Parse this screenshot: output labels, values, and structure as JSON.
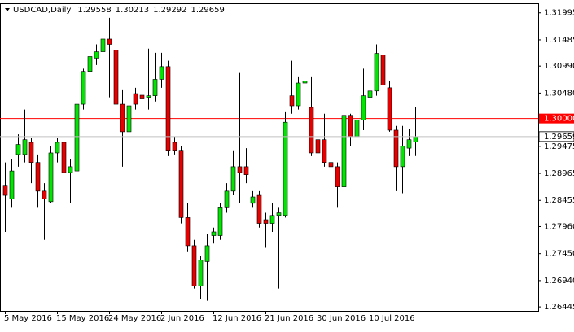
{
  "chart_data": {
    "type": "candlestick",
    "title": "USDCAD,Daily",
    "up_color": "#00e600",
    "down_color": "#e60000",
    "categories": [
      "5 May 2016",
      null,
      null,
      null,
      null,
      null,
      null,
      null,
      "15 May 2016",
      null,
      null,
      null,
      null,
      null,
      null,
      null,
      "24 May 2016",
      null,
      null,
      null,
      null,
      null,
      null,
      null,
      "2 Jun 2016",
      null,
      null,
      null,
      null,
      null,
      null,
      null,
      "12 Jun 2016",
      null,
      null,
      null,
      null,
      null,
      null,
      null,
      "21 Jun 2016",
      null,
      null,
      null,
      null,
      null,
      null,
      null,
      "30 Jun 2016",
      null,
      null,
      null,
      null,
      null,
      null,
      null,
      "10 Jul 2016",
      null,
      null,
      null,
      null,
      null,
      null,
      null
    ],
    "open": [
      1.2874,
      1.2848,
      1.2932,
      1.2932,
      1.2955,
      1.2917,
      1.2863,
      1.2843,
      1.2935,
      1.2955,
      1.2898,
      1.2901,
      1.3027,
      1.3089,
      1.3114,
      1.3126,
      1.315,
      1.3129,
      1.3027,
      1.2975,
      1.3047,
      1.3044,
      1.304,
      1.3043,
      1.3074,
      1.3098,
      1.2955,
      1.294,
      1.2813,
      1.276,
      1.2684,
      1.273,
      1.2779,
      1.2779,
      1.2833,
      1.2863,
      1.2909,
      1.2909,
      1.284,
      1.2855,
      1.2809,
      1.2802,
      1.2817,
      1.2817,
      1.3043,
      1.3024,
      1.3067,
      1.3021,
      1.296,
      1.296,
      1.2917,
      1.2909,
      1.2871,
      1.3006,
      1.2966,
      1.2997,
      1.304,
      1.3052,
      1.312,
      1.3058,
      1.2978,
      1.2909,
      1.2944,
      1.29558
    ],
    "high": [
      1.2917,
      1.2924,
      1.297,
      1.3017,
      1.2963,
      1.2932,
      1.2878,
      1.2948,
      1.2963,
      1.2963,
      1.2924,
      1.3032,
      1.3094,
      1.316,
      1.314,
      1.3166,
      1.319,
      1.3135,
      1.3055,
      1.304,
      1.3058,
      1.3058,
      1.3132,
      1.3124,
      1.3124,
      1.3109,
      1.2966,
      1.2948,
      1.284,
      1.2771,
      1.274,
      1.2782,
      1.2794,
      1.284,
      1.2878,
      1.294,
      1.3086,
      1.2944,
      1.2863,
      1.2863,
      1.2822,
      1.284,
      1.2833,
      1.3012,
      1.3109,
      1.3078,
      1.3114,
      1.3078,
      1.3009,
      1.3009,
      1.2924,
      1.2917,
      1.3027,
      1.3009,
      1.3032,
      1.3094,
      1.3058,
      1.314,
      1.3132,
      1.3071,
      1.2986,
      1.2986,
      1.2981,
      1.30213
    ],
    "low": [
      1.2786,
      1.2833,
      1.2909,
      1.2917,
      1.2878,
      1.2833,
      1.2771,
      1.284,
      1.2917,
      1.2894,
      1.284,
      1.2894,
      1.3017,
      1.3083,
      1.3101,
      1.312,
      1.304,
      1.2955,
      1.2909,
      1.2963,
      1.3017,
      1.3017,
      1.3017,
      1.3032,
      1.3058,
      1.2929,
      1.2932,
      1.2802,
      1.2748,
      1.2679,
      1.2659,
      1.2656,
      1.2764,
      1.2771,
      1.2822,
      1.2855,
      1.284,
      1.2878,
      1.2833,
      1.2794,
      1.2756,
      1.2786,
      1.2679,
      1.2813,
      1.3009,
      1.3017,
      1.3024,
      1.2929,
      1.292,
      1.2909,
      1.2863,
      1.2833,
      1.2868,
      1.2948,
      1.2955,
      1.2978,
      1.3032,
      1.3043,
      1.2978,
      1.2975,
      1.2863,
      1.2859,
      1.2929,
      1.29292
    ],
    "close": [
      1.2855,
      1.2901,
      1.2951,
      1.296,
      1.2917,
      1.2863,
      1.2848,
      1.2935,
      1.2955,
      1.2898,
      1.2909,
      1.3027,
      1.3089,
      1.3117,
      1.3126,
      1.315,
      1.314,
      1.3027,
      1.2975,
      1.3024,
      1.3027,
      1.3037,
      1.3043,
      1.3074,
      1.3098,
      1.294,
      1.294,
      1.2813,
      1.276,
      1.2684,
      1.2733,
      1.276,
      1.2786,
      1.2833,
      1.2863,
      1.2909,
      1.2898,
      1.2894,
      1.2852,
      1.2802,
      1.2802,
      1.2817,
      1.2822,
      1.2993,
      1.3024,
      1.3067,
      1.3071,
      1.2935,
      1.2935,
      1.2917,
      1.2909,
      1.2871,
      1.3006,
      1.2966,
      1.2997,
      1.3043,
      1.3052,
      1.3123,
      1.3063,
      1.2978,
      1.2909,
      1.2948,
      1.296,
      1.29659
    ],
    "ylim": [
      1.2637,
      1.3216
    ],
    "yticks": [
      1.31995,
      1.31485,
      {
        "value": 1.3099,
        "label": "1.30990"
      },
      {
        "value": 1.3048,
        "label": "1.30480"
      },
      1.29475,
      1.28965,
      1.28455,
      {
        "value": 1.2796,
        "label": "1.27960"
      },
      {
        "value": 1.2745,
        "label": "1.27450"
      },
      {
        "value": 1.2694,
        "label": "1.26940"
      },
      1.26445
    ],
    "hlines": [
      {
        "value": 1.3,
        "label": "1.30000",
        "color": "#ff0000"
      }
    ],
    "price_line_color": "#c0c0c0"
  }
}
